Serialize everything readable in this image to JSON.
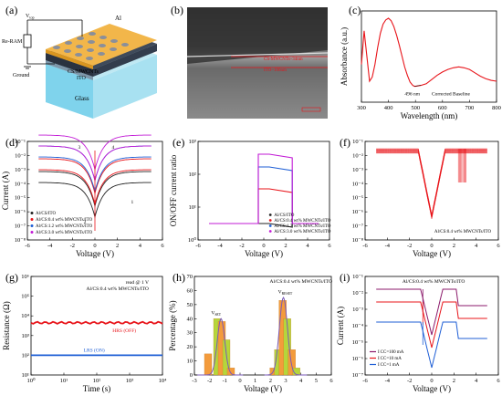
{
  "panels": {
    "a": {
      "label": "(a)",
      "v_top": "V",
      "v_top_sub": "top",
      "reram": "Re-RAM",
      "ground": "Ground",
      "al": "Al",
      "layer": "CS/MWCNTs",
      "ito": "ITO",
      "glass": "Glass"
    },
    "b": {
      "label": "(b)",
      "layer1": "CS-MWCNTs~34nm",
      "layer2": "ITO~106nm"
    },
    "c": {
      "label": "(c)",
      "xlabel": "Wavelength (nm)",
      "ylabel": "Absorbance (a.u.)",
      "xticks": [
        "300",
        "400",
        "500",
        "600",
        "700",
        "800"
      ],
      "annot1": "496 nm",
      "annot2": "Corrected Baseline"
    },
    "d": {
      "label": "(d)",
      "xlabel": "Voltage (V)",
      "ylabel": "Current (A)",
      "xticks": [
        "-6",
        "-4",
        "-2",
        "0",
        "2",
        "4",
        "6"
      ],
      "yticks": [
        "10⁻¹",
        "10⁻²",
        "10⁻³",
        "10⁻⁴",
        "10⁻⁵",
        "10⁻⁶",
        "10⁻⁷",
        "10⁻⁸"
      ],
      "legend": [
        "Al/CS/ITO",
        "Al/CS:0.4 wt% MWCNTs/ITO",
        "Al/CS:1.2 wt% MWCNTs/ITO",
        "Al/CS:3.0 wt% MWCNTs/ITO"
      ],
      "colors": [
        "#222222",
        "#e8141a",
        "#1f5fd6",
        "#c21bd6"
      ],
      "arrows": [
        "1",
        "2",
        "3",
        "4"
      ]
    },
    "e": {
      "label": "(e)",
      "xlabel": "Voltage (V)",
      "ylabel": "ON/OFF current ratio",
      "xticks": [
        "-6",
        "-4",
        "-2",
        "0",
        "2",
        "4",
        "6"
      ],
      "yticks": [
        "10³",
        "10²",
        "10¹",
        "10⁰"
      ],
      "legend": [
        "Al/CS/ITO",
        "Al/CS:0.4 wt% MWCNTs/ITO",
        "Al/CS:1.2 wt% MWCNTs/ITO",
        "Al/CS:3.0 wt% MWCNTs/ITO"
      ],
      "colors": [
        "#222222",
        "#e8141a",
        "#1f5fd6",
        "#c21bd6"
      ]
    },
    "f": {
      "label": "(f)",
      "xlabel": "Voltage (V)",
      "ylabel": "",
      "xticks": [
        "-6",
        "-4",
        "-2",
        "0",
        "2",
        "4",
        "6"
      ],
      "yticks": [
        "10⁻¹",
        "10⁻²",
        "10⁻³",
        "10⁻⁴",
        "10⁻⁵",
        "10⁻⁶",
        "10⁻⁷",
        "10⁻⁸"
      ],
      "annot": "Al/CS:0.4 wt% MWCNTs/ITO"
    },
    "g": {
      "label": "(g)",
      "xlabel": "Time (s)",
      "ylabel": "Resistance (Ω)",
      "xticks": [
        "10⁰",
        "10¹",
        "10²",
        "10³",
        "10⁴"
      ],
      "yticks": [
        "10⁶",
        "10⁵",
        "10⁴",
        "10³",
        "10²",
        "10¹"
      ],
      "read": "read @ 1 V",
      "annot": "Al/CS:0.4 wt% MWCNTs/ITO",
      "hrs": "HRS (OFF)",
      "lrs": "LRS (ON)"
    },
    "h": {
      "label": "(h)",
      "xlabel": "Voltage (V)",
      "ylabel": "Percentage (%)",
      "xticks": [
        "-3",
        "-2",
        "-1",
        "0",
        "1",
        "2",
        "3",
        "4",
        "5",
        "6"
      ],
      "yticks": [
        "70",
        "60",
        "50",
        "40",
        "30",
        "20",
        "10",
        "0"
      ],
      "annot": "Al/CS:0.4 wt% MWCNTs/ITO",
      "vset": "V",
      "vset_sub": "SET",
      "vreset": "V",
      "vreset_sub": "RESET"
    },
    "i": {
      "label": "(i)",
      "xlabel": "Voltage (V)",
      "ylabel": "Current (A)",
      "xticks": [
        "-6",
        "-4",
        "-2",
        "0",
        "2",
        "4",
        "6"
      ],
      "yticks": [
        "10⁻¹",
        "10⁻²",
        "10⁻³",
        "10⁻⁴",
        "10⁻⁵",
        "10⁻⁶",
        "10⁻⁷"
      ],
      "annot": "Al/CS:0.4 wt% MWCNTs/ITO",
      "legend": [
        "I CC=100 mA",
        "I CC=10 mA",
        "I CC=1 mA"
      ],
      "colors": [
        "#8b1a6b",
        "#e8141a",
        "#1f5fd6"
      ]
    }
  },
  "chart_data": [
    {
      "type": "line",
      "panel": "c",
      "xlabel": "Wavelength (nm)",
      "ylabel": "Absorbance (a.u.)",
      "xlim": [
        300,
        800
      ],
      "x": [
        300,
        310,
        320,
        330,
        340,
        350,
        360,
        370,
        380,
        390,
        400,
        410,
        420,
        430,
        440,
        450,
        460,
        470,
        480,
        490,
        496,
        500,
        520,
        540,
        560,
        580,
        600,
        620,
        640,
        660,
        680,
        700,
        720,
        740,
        760,
        780,
        800
      ],
      "y": [
        0.45,
        0.85,
        0.55,
        0.25,
        0.3,
        0.45,
        0.65,
        0.82,
        0.93,
        0.98,
        1.0,
        0.97,
        0.9,
        0.8,
        0.68,
        0.55,
        0.42,
        0.32,
        0.24,
        0.2,
        0.19,
        0.19,
        0.2,
        0.22,
        0.27,
        0.32,
        0.36,
        0.39,
        0.41,
        0.42,
        0.41,
        0.39,
        0.35,
        0.31,
        0.28,
        0.26,
        0.25
      ]
    },
    {
      "type": "bar",
      "panel": "h",
      "xlabel": "Voltage (V)",
      "ylabel": "Percentage (%)",
      "ylim": [
        0,
        70
      ],
      "series": [
        {
          "name": "VSET",
          "x": [
            -2.1,
            -1.5,
            -1.2,
            -0.9,
            -0.6
          ],
          "values": [
            15,
            40,
            38,
            25,
            5
          ]
        },
        {
          "name": "VRESET",
          "x": [
            2.2,
            2.5,
            2.8,
            3.1,
            3.4,
            3.7
          ],
          "values": [
            5,
            18,
            53,
            40,
            18,
            5
          ]
        }
      ]
    },
    {
      "type": "line",
      "panel": "g",
      "xlabel": "Time (s)",
      "ylabel": "Resistance (Ω)",
      "series": [
        {
          "name": "HRS (OFF)",
          "value": 7000
        },
        {
          "name": "LRS (ON)",
          "value": 38
        }
      ]
    }
  ]
}
